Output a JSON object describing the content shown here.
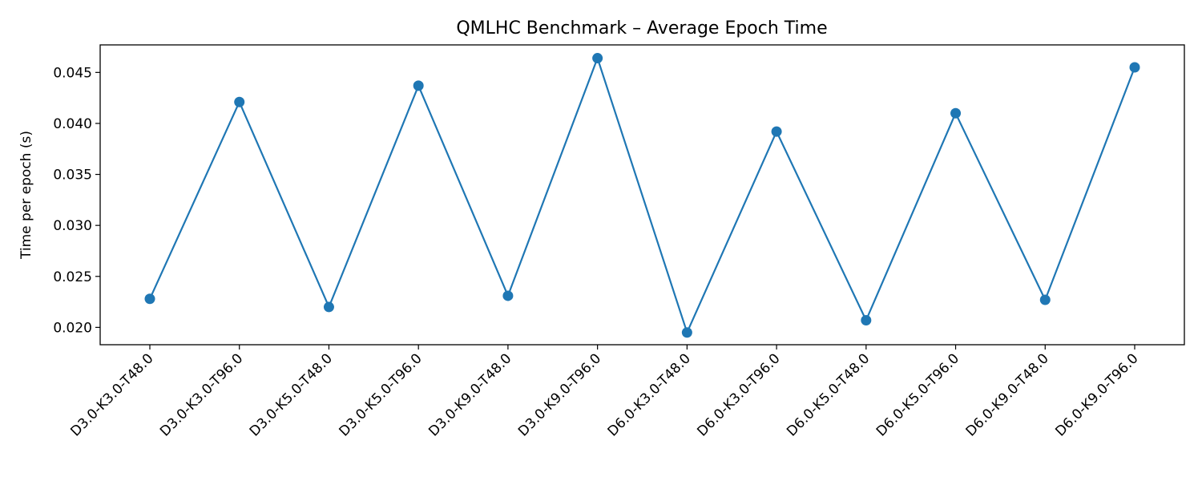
{
  "chart_data": {
    "type": "line",
    "title": "QMLHC Benchmark – Average Epoch Time",
    "xlabel": "",
    "ylabel": "Time per epoch (s)",
    "categories": [
      "D3.0-K3.0-T48.0",
      "D3.0-K3.0-T96.0",
      "D3.0-K5.0-T48.0",
      "D3.0-K5.0-T96.0",
      "D3.0-K9.0-T48.0",
      "D3.0-K9.0-T96.0",
      "D6.0-K3.0-T48.0",
      "D6.0-K3.0-T96.0",
      "D6.0-K5.0-T48.0",
      "D6.0-K5.0-T96.0",
      "D6.0-K9.0-T48.0",
      "D6.0-K9.0-T96.0"
    ],
    "series": [
      {
        "values": [
          0.0228,
          0.0421,
          0.022,
          0.0437,
          0.0231,
          0.0464,
          0.0195,
          0.0392,
          0.0207,
          0.041,
          0.0227,
          0.0455
        ]
      }
    ],
    "yticks": [
      "0.020",
      "0.025",
      "0.030",
      "0.035",
      "0.040",
      "0.045"
    ],
    "ylim": [
      0.0183,
      0.0477
    ],
    "grid": false,
    "line_color": "#1f77b4"
  }
}
